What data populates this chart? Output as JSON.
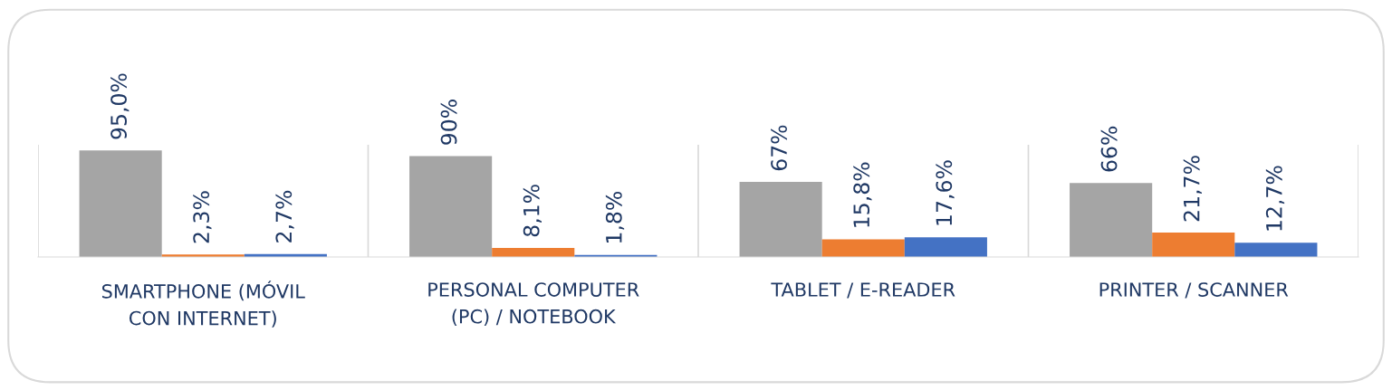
{
  "chart_data": {
    "type": "bar",
    "categories": [
      "SMARTPHONE (MÓVIL CON INTERNET)",
      "PERSONAL COMPUTER (PC) / NOTEBOOK",
      "TABLET / E-READER",
      "PRINTER / SCANNER"
    ],
    "series": [
      {
        "color": "#a5a5a5",
        "values": [
          95.0,
          90,
          67,
          66
        ],
        "value_labels": [
          "95,0%",
          "90%",
          "67%",
          "66%"
        ]
      },
      {
        "color": "#ed7d31",
        "values": [
          2.3,
          8.1,
          15.8,
          21.7
        ],
        "value_labels": [
          "2,3%",
          "8,1%",
          "15,8%",
          "21,7%"
        ]
      },
      {
        "color": "#4472c4",
        "values": [
          2.7,
          1.8,
          17.6,
          12.7
        ],
        "value_labels": [
          "2,7%",
          "1,8%",
          "17,6%",
          "12,7%"
        ]
      }
    ],
    "ylim": [
      0,
      100
    ],
    "grid": "x",
    "legend": false,
    "tick_labels": "x"
  }
}
